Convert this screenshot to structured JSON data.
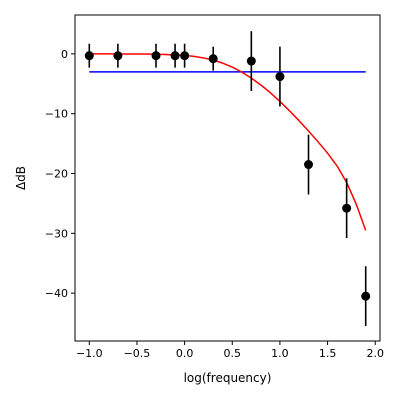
{
  "chart_data": {
    "type": "scatter",
    "title": "",
    "xlabel": "log(frequency)",
    "ylabel": "ΔdB",
    "xlim": [
      -1.15,
      2.05
    ],
    "ylim": [
      -48,
      6.5
    ],
    "grid": false,
    "legend": "none",
    "x_ticks": [
      -1.0,
      -0.5,
      0.0,
      0.5,
      1.0,
      1.5,
      2.0
    ],
    "x_tick_labels": [
      "−1.0",
      "−0.5",
      "0.0",
      "0.5",
      "1.0",
      "1.5",
      "2.0"
    ],
    "y_ticks": [
      0,
      -10,
      -20,
      -30,
      -40
    ],
    "y_tick_labels": [
      "0",
      "−10",
      "−20",
      "−30",
      "−40"
    ],
    "series": [
      {
        "kind": "errorbar",
        "color": "#000000",
        "x": [
          -1.0,
          -0.7,
          -0.3,
          -0.1,
          0.0,
          0.3,
          0.7,
          1.0,
          1.3,
          1.7,
          1.9
        ],
        "y": [
          -0.3,
          -0.3,
          -0.3,
          -0.3,
          -0.3,
          -0.8,
          -1.2,
          -3.8,
          -18.5,
          -25.8,
          -40.5
        ],
        "yerr": [
          2.0,
          2.0,
          2.0,
          2.0,
          2.0,
          2.0,
          5.0,
          5.0,
          5.0,
          5.0,
          5.0
        ]
      },
      {
        "kind": "line",
        "color": "#ff0000",
        "x": [
          -1.0,
          -0.8,
          -0.6,
          -0.4,
          -0.2,
          0.0,
          0.1,
          0.2,
          0.3,
          0.4,
          0.5,
          0.6,
          0.7,
          0.8,
          0.9,
          1.0,
          1.1,
          1.2,
          1.3,
          1.4,
          1.5,
          1.6,
          1.7,
          1.8,
          1.9
        ],
        "y": [
          0.0,
          0.0,
          -0.01,
          -0.03,
          -0.1,
          -0.26,
          -0.42,
          -0.68,
          -1.04,
          -1.55,
          -2.2,
          -3.05,
          -4.05,
          -5.2,
          -6.5,
          -7.95,
          -9.5,
          -11.15,
          -12.9,
          -14.7,
          -16.6,
          -18.75,
          -21.5,
          -25.1,
          -29.5
        ]
      },
      {
        "kind": "hline",
        "color": "#0000ff",
        "x": [
          -1.0,
          1.9
        ],
        "y": [
          -3.0,
          -3.0
        ]
      }
    ]
  }
}
